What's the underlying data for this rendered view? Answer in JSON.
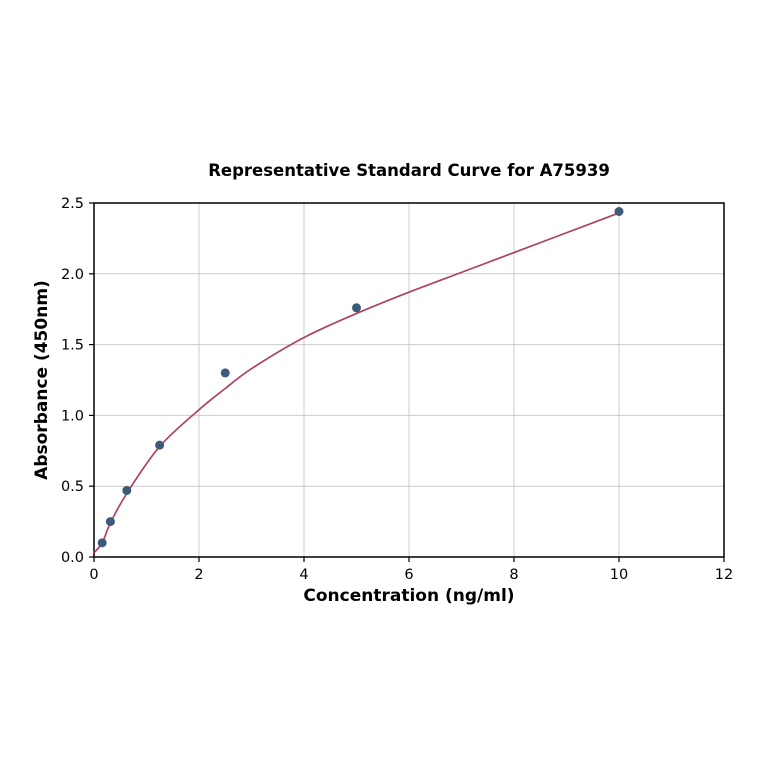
{
  "chart_data": {
    "type": "scatter",
    "title": "Representative Standard Curve for A75939",
    "xlabel": "Concentration (ng/ml)",
    "ylabel": "Absorbance (450nm)",
    "xlim": [
      0,
      12
    ],
    "ylim": [
      0.0,
      2.5
    ],
    "x_ticks": [
      0,
      2,
      4,
      6,
      8,
      10,
      12
    ],
    "x_tick_labels": [
      "0",
      "2",
      "4",
      "6",
      "8",
      "10",
      "12"
    ],
    "y_ticks": [
      0.0,
      0.5,
      1.0,
      1.5,
      2.0,
      2.5
    ],
    "y_tick_labels": [
      "0.0",
      "0.5",
      "1.0",
      "1.5",
      "2.0",
      "2.5"
    ],
    "grid": true,
    "legend": null,
    "points": [
      {
        "x": 0.156,
        "y": 0.1
      },
      {
        "x": 0.3125,
        "y": 0.25
      },
      {
        "x": 0.625,
        "y": 0.47
      },
      {
        "x": 1.25,
        "y": 0.79
      },
      {
        "x": 2.5,
        "y": 1.3
      },
      {
        "x": 5,
        "y": 1.76
      },
      {
        "x": 10,
        "y": 2.44
      }
    ],
    "fit_curve": [
      [
        0,
        0.03
      ],
      [
        0.156,
        0.1
      ],
      [
        0.3125,
        0.24
      ],
      [
        0.625,
        0.45
      ],
      [
        1.25,
        0.78
      ],
      [
        2,
        1.04
      ],
      [
        2.5,
        1.19
      ],
      [
        3,
        1.33
      ],
      [
        4,
        1.55
      ],
      [
        5,
        1.72
      ],
      [
        6,
        1.87
      ],
      [
        7,
        2.01
      ],
      [
        8,
        2.15
      ],
      [
        9,
        2.29
      ],
      [
        10,
        2.43
      ]
    ],
    "colors": {
      "point": "#3d5a7a",
      "curve": "#b04166",
      "grid": "#cccccc",
      "axis": "#000000",
      "background": "#ffffff"
    }
  }
}
